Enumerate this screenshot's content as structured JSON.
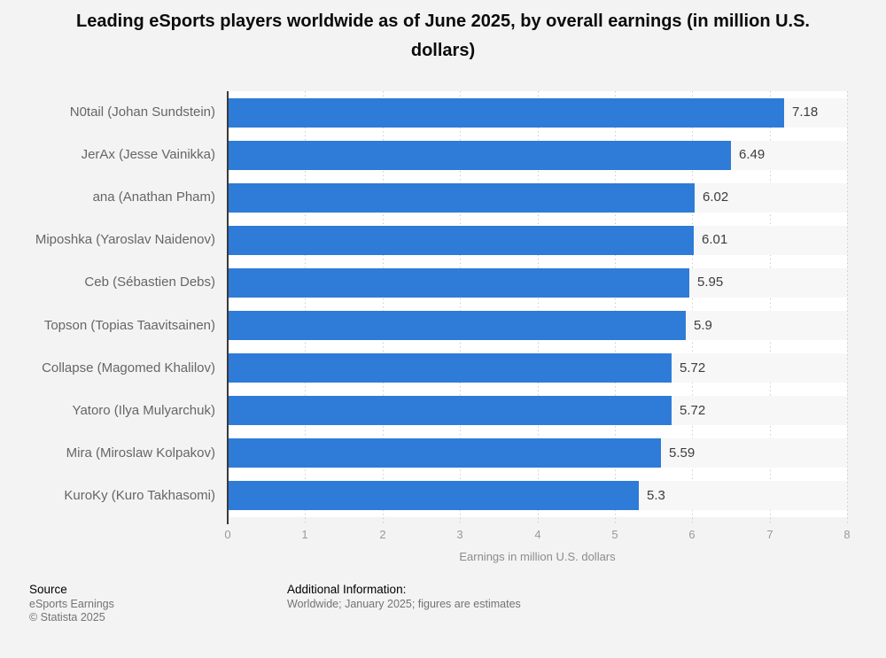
{
  "title": "Leading eSports players worldwide as of June 2025, by overall earnings (in million U.S. dollars)",
  "chart_data": {
    "type": "bar",
    "orientation": "horizontal",
    "categories": [
      "N0tail (Johan Sundstein)",
      "JerAx (Jesse Vainikka)",
      "ana (Anathan Pham)",
      "Miposhka (Yaroslav Naidenov)",
      "Ceb (Sébastien Debs)",
      "Topson (Topias Taavitsainen)",
      "Collapse (Magomed Khalilov)",
      "Yatoro (Ilya Mulyarchuk)",
      "Mira (Miroslaw Kolpakov)",
      "KuroKy (Kuro Takhasomi)"
    ],
    "values": [
      7.18,
      6.49,
      6.02,
      6.01,
      5.95,
      5.9,
      5.72,
      5.72,
      5.59,
      5.3
    ],
    "display_values": [
      "7.18",
      "6.49",
      "6.02",
      "6.01",
      "5.95",
      "5.9",
      "5.72",
      "5.72",
      "5.59",
      "5.3"
    ],
    "title": "Leading eSports players worldwide as of June 2025, by overall earnings (in million U.S. dollars)",
    "xlabel": "Earnings in million U.S. dollars",
    "ylabel": "",
    "xlim": [
      0,
      8
    ],
    "xticks": [
      0,
      1,
      2,
      3,
      4,
      5,
      6,
      7,
      8
    ],
    "grid": "vertical-dotted",
    "legend": "none",
    "bar_color": "#2e7bd8",
    "row_band_color": "#f7f7f7"
  },
  "colors": {
    "page_background": "#f3f3f3",
    "plot_background": "#ffffff",
    "axis_line": "#3a3a3a",
    "gridline": "#cdcdcd",
    "category_label": "#666666",
    "value_label": "#3d3d3d",
    "tick_label": "#999999"
  },
  "footer": {
    "source_heading": "Source",
    "source_name": "eSports Earnings",
    "copyright": "© Statista 2025",
    "additional_heading": "Additional Information:",
    "additional_text": "Worldwide; January 2025; figures are estimates"
  }
}
